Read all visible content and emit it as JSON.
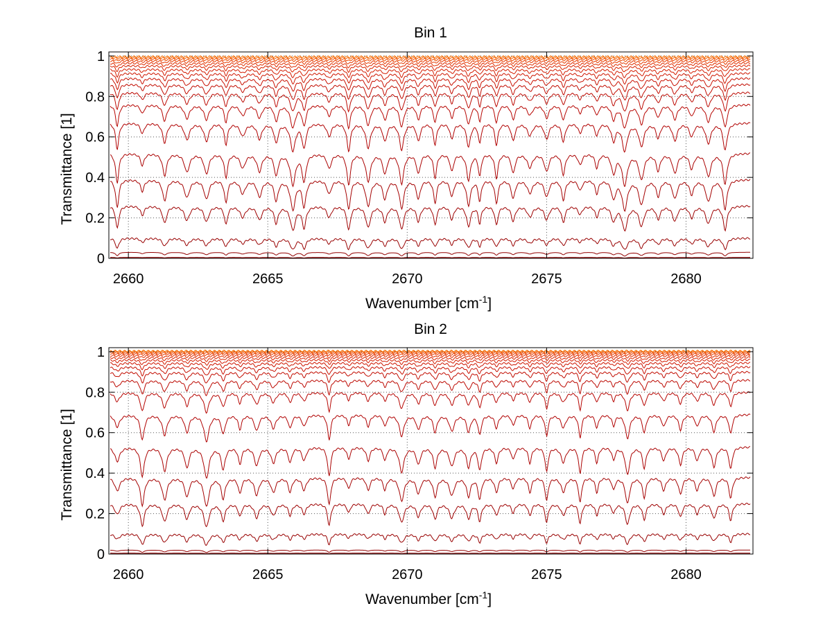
{
  "chart_data": [
    {
      "type": "line",
      "title": "Bin 1",
      "xlabel": "Wavenumber [cm",
      "xlabel_sup": "-1",
      "xlabel_end": "]",
      "ylabel": "Transmittance [1]",
      "xlim": [
        2659.3,
        2682.4
      ],
      "ylim": [
        0,
        1.02
      ],
      "xticks": [
        2660,
        2665,
        2670,
        2675,
        2680
      ],
      "yticks": [
        0,
        0.2,
        0.4,
        0.6,
        0.8,
        1
      ],
      "ytick_labels": [
        "0",
        "0.2",
        "0.4",
        "0.6",
        "0.8",
        "1"
      ],
      "grid": true,
      "line_positions": [
        2659.6,
        2660.5,
        2661.3,
        2662.1,
        2662.8,
        2663.5,
        2664.1,
        2664.7,
        2665.3,
        2665.9,
        2666.3,
        2667.2,
        2667.9,
        2668.6,
        2669.2,
        2669.8,
        2670.4,
        2671.0,
        2671.6,
        2672.2,
        2672.6,
        2673.2,
        2673.8,
        2674.4,
        2675.0,
        2675.6,
        2676.2,
        2676.8,
        2677.4,
        2677.8,
        2678.4,
        2679.0,
        2679.6,
        2680.2,
        2680.8,
        2681.4
      ],
      "series_baselines": [
        0.0,
        0.005,
        0.03,
        0.1,
        0.26,
        0.39,
        0.52,
        0.67,
        0.76,
        0.82,
        0.86,
        0.89,
        0.915,
        0.935,
        0.952,
        0.965,
        0.976,
        0.985,
        0.992,
        0.997
      ],
      "line_depth_factor": 0.28,
      "series_colors": [
        "#8b0000",
        "#8e0000",
        "#930000",
        "#980000",
        "#9e0000",
        "#a40000",
        "#aa0000",
        "#b00000",
        "#b60400",
        "#bc0800",
        "#c20c00",
        "#c81000",
        "#ce1600",
        "#d41c00",
        "#da2400",
        "#e02e00",
        "#e63a00",
        "#ec4a00",
        "#f25c00",
        "#f87000"
      ]
    },
    {
      "type": "line",
      "title": "Bin 2",
      "xlabel": "Wavenumber [cm",
      "xlabel_sup": "-1",
      "xlabel_end": "]",
      "ylabel": "Transmittance [1]",
      "xlim": [
        2659.3,
        2682.4
      ],
      "ylim": [
        0,
        1.02
      ],
      "xticks": [
        2660,
        2665,
        2670,
        2675,
        2680
      ],
      "yticks": [
        0,
        0.2,
        0.4,
        0.6,
        0.8,
        1
      ],
      "ytick_labels": [
        "0",
        "0.2",
        "0.4",
        "0.6",
        "0.8",
        "1"
      ],
      "grid": true,
      "line_positions": [
        2659.6,
        2660.5,
        2661.3,
        2662.1,
        2662.8,
        2663.4,
        2664.0,
        2664.6,
        2665.2,
        2665.8,
        2666.3,
        2667.2,
        2667.9,
        2668.6,
        2669.2,
        2669.8,
        2670.4,
        2671.0,
        2671.6,
        2672.2,
        2672.6,
        2673.2,
        2673.8,
        2674.4,
        2675.0,
        2675.6,
        2676.2,
        2676.8,
        2677.4,
        2677.9,
        2678.5,
        2679.2,
        2679.8,
        2680.4,
        2681.0,
        2681.6
      ],
      "series_baselines": [
        0.0,
        0.005,
        0.02,
        0.1,
        0.25,
        0.38,
        0.53,
        0.69,
        0.8,
        0.86,
        0.9,
        0.925,
        0.945,
        0.96,
        0.972,
        0.982,
        0.99,
        0.996,
        1.0,
        1.003
      ],
      "line_depth_factor": 0.3,
      "series_colors": [
        "#8b0000",
        "#8e0000",
        "#930000",
        "#980000",
        "#9e0000",
        "#a40000",
        "#aa0000",
        "#b00000",
        "#b60400",
        "#bc0800",
        "#c20c00",
        "#c81000",
        "#ce1600",
        "#d41c00",
        "#da2400",
        "#e02e00",
        "#e63a00",
        "#ec4a00",
        "#f25c00",
        "#f87000"
      ]
    }
  ]
}
